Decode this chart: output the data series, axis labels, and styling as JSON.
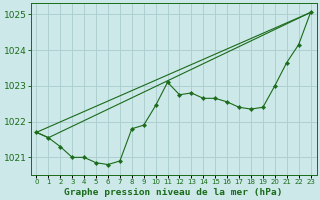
{
  "background_color": "#cce8e8",
  "grid_color": "#aacccc",
  "line_color": "#1a6b1a",
  "marker_color": "#1a6b1a",
  "title": "Graphe pression niveau de la mer (hPa)",
  "x_ticks": [
    0,
    1,
    2,
    3,
    4,
    5,
    6,
    7,
    8,
    9,
    10,
    11,
    12,
    13,
    14,
    15,
    16,
    17,
    18,
    19,
    20,
    21,
    22,
    23
  ],
  "xlim": [
    -0.5,
    23.5
  ],
  "ylim": [
    1020.5,
    1025.3
  ],
  "yticks": [
    1021,
    1022,
    1023,
    1024,
    1025
  ],
  "line1_x": [
    0,
    1,
    2,
    3,
    4,
    5,
    6,
    7,
    8,
    9,
    10,
    11,
    12,
    13,
    14,
    15,
    16,
    17,
    18,
    19,
    20,
    21,
    22,
    23
  ],
  "line1": [
    1021.7,
    1021.55,
    1021.3,
    1021.0,
    1021.0,
    1020.85,
    1020.8,
    1020.9,
    1021.8,
    1021.9,
    1022.45,
    1023.1,
    1022.75,
    1022.8,
    1022.65,
    1022.65,
    1022.55,
    1022.4,
    1022.35,
    1022.4,
    1023.0,
    1023.65,
    1024.15,
    1025.05
  ],
  "line2_x": [
    0,
    1,
    23
  ],
  "line2": [
    1021.7,
    1021.55,
    1025.05
  ],
  "line3_x": [
    0,
    23
  ],
  "line3": [
    1021.7,
    1025.05
  ]
}
